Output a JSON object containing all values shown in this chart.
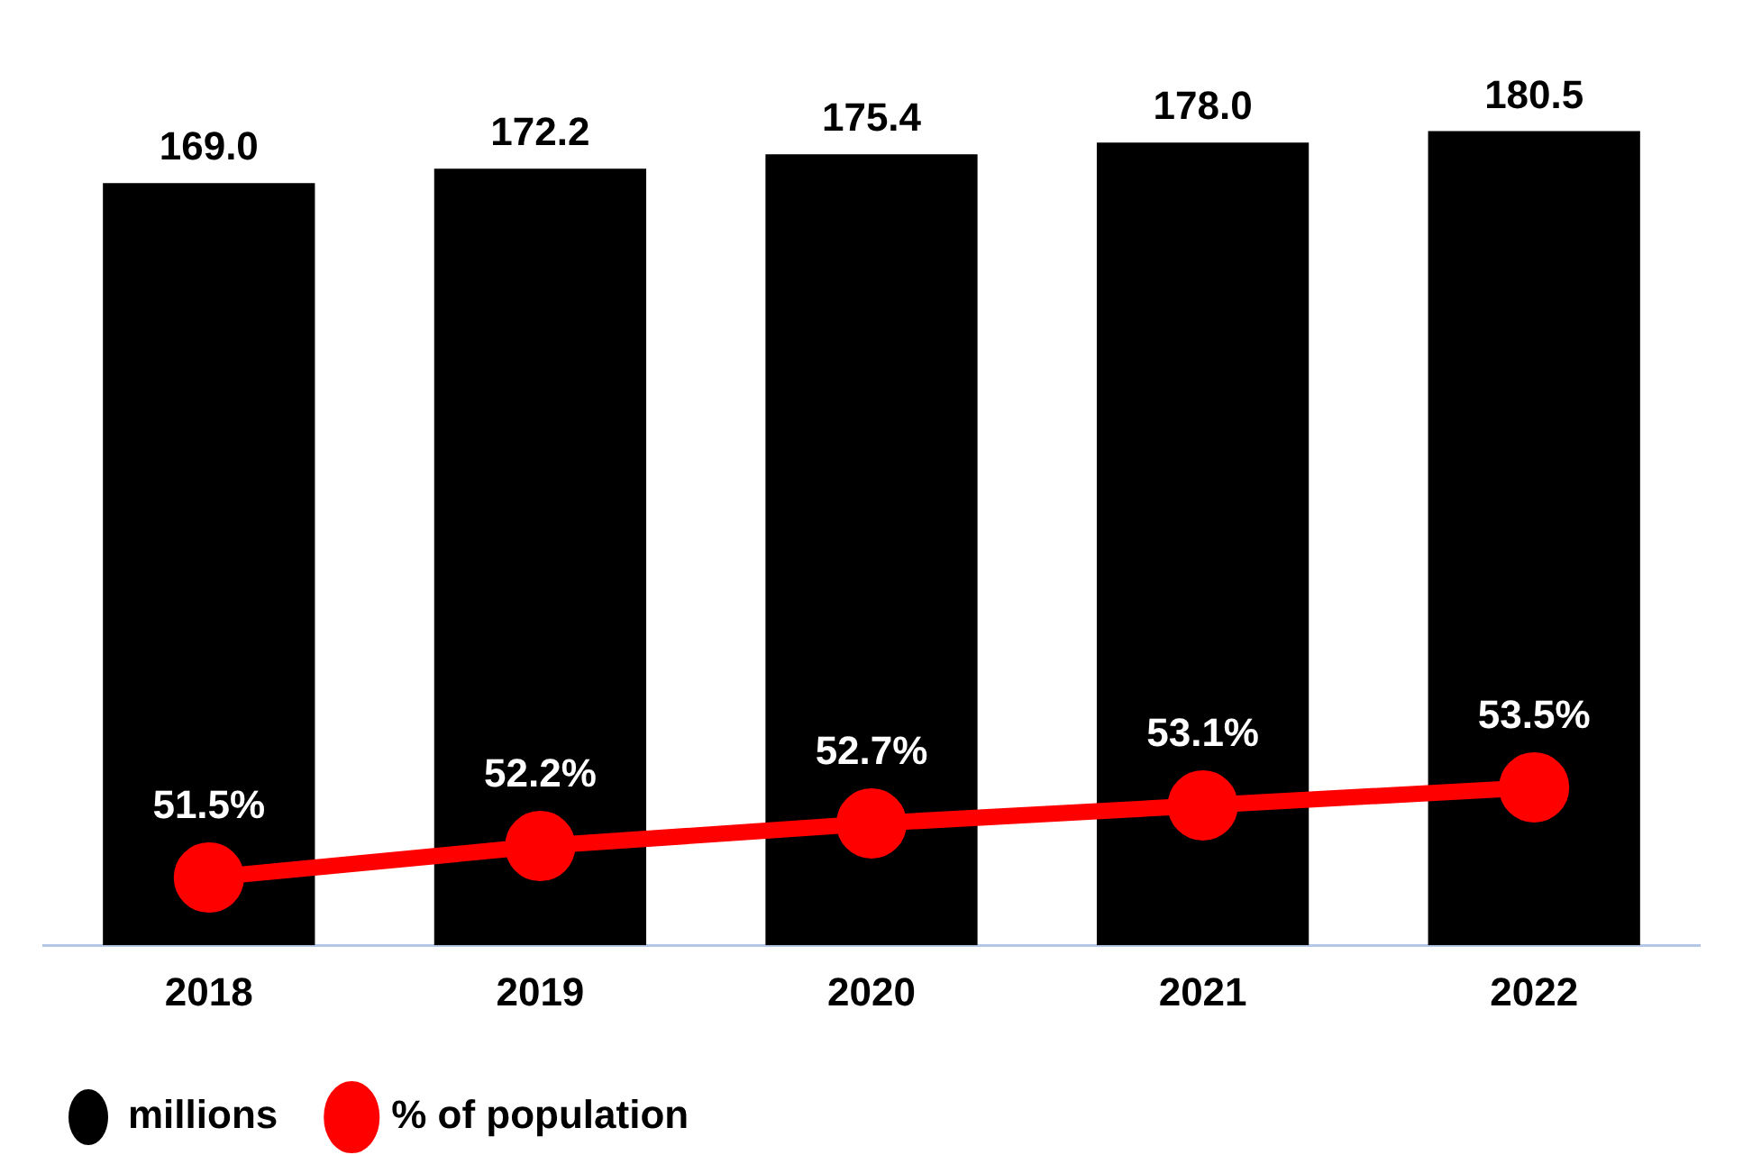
{
  "chart_data": {
    "type": "bar",
    "categories": [
      "2018",
      "2019",
      "2020",
      "2021",
      "2022"
    ],
    "series": [
      {
        "name": "millions",
        "color": "#000000",
        "values": [
          169.0,
          172.2,
          175.4,
          178.0,
          180.5
        ],
        "value_labels": [
          "169.0",
          "172.2",
          "175.4",
          "178.0",
          "180.5"
        ]
      },
      {
        "name": "% of population",
        "type": "line",
        "axis": "y2",
        "color": "#ff0000",
        "marker": "circle",
        "values": [
          51.5,
          52.2,
          52.7,
          53.1,
          53.5
        ],
        "value_labels": [
          "51.5%",
          "52.2%",
          "52.7%",
          "53.1%",
          "53.5%"
        ]
      }
    ],
    "data_labels": true,
    "tick_labels": "x",
    "grid": false,
    "legend": "bottom left"
  }
}
